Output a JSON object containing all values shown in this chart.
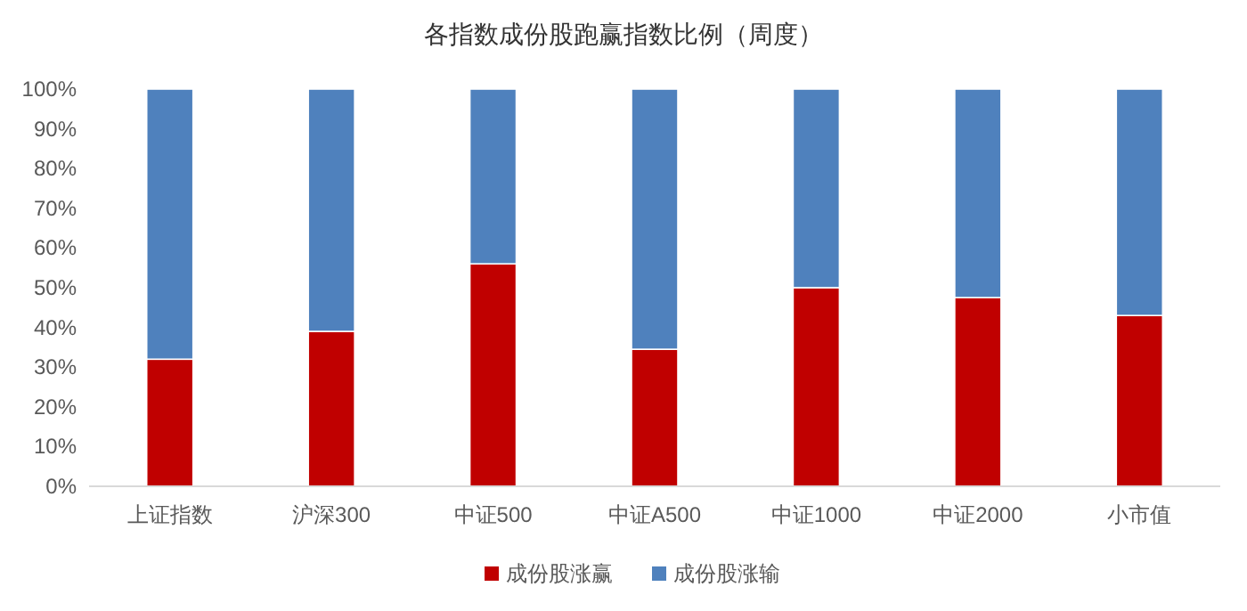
{
  "chart_data": {
    "type": "bar",
    "title": "各指数成份股跑赢指数比例（周度）",
    "categories": [
      "上证指数",
      "沪深300",
      "中证500",
      "中证A500",
      "中证1000",
      "中证2000",
      "小市值"
    ],
    "stacked": true,
    "series": [
      {
        "name": "成份股涨赢",
        "color": "#c00000",
        "values": [
          32,
          39,
          56,
          34.5,
          50,
          47.5,
          43
        ]
      },
      {
        "name": "成份股涨输",
        "color": "#4f81bd",
        "values": [
          68,
          61,
          44,
          65.5,
          50,
          52.5,
          57
        ]
      }
    ],
    "ylim": [
      0,
      100
    ],
    "yticks": [
      {
        "value": 0,
        "label": "0%"
      },
      {
        "value": 10,
        "label": "10%"
      },
      {
        "value": 20,
        "label": "20%"
      },
      {
        "value": 30,
        "label": "30%"
      },
      {
        "value": 40,
        "label": "40%"
      },
      {
        "value": 50,
        "label": "50%"
      },
      {
        "value": 60,
        "label": "60%"
      },
      {
        "value": 70,
        "label": "70%"
      },
      {
        "value": 80,
        "label": "80%"
      },
      {
        "value": 90,
        "label": "90%"
      },
      {
        "value": 100,
        "label": "100%"
      }
    ],
    "legend": "bottom"
  }
}
